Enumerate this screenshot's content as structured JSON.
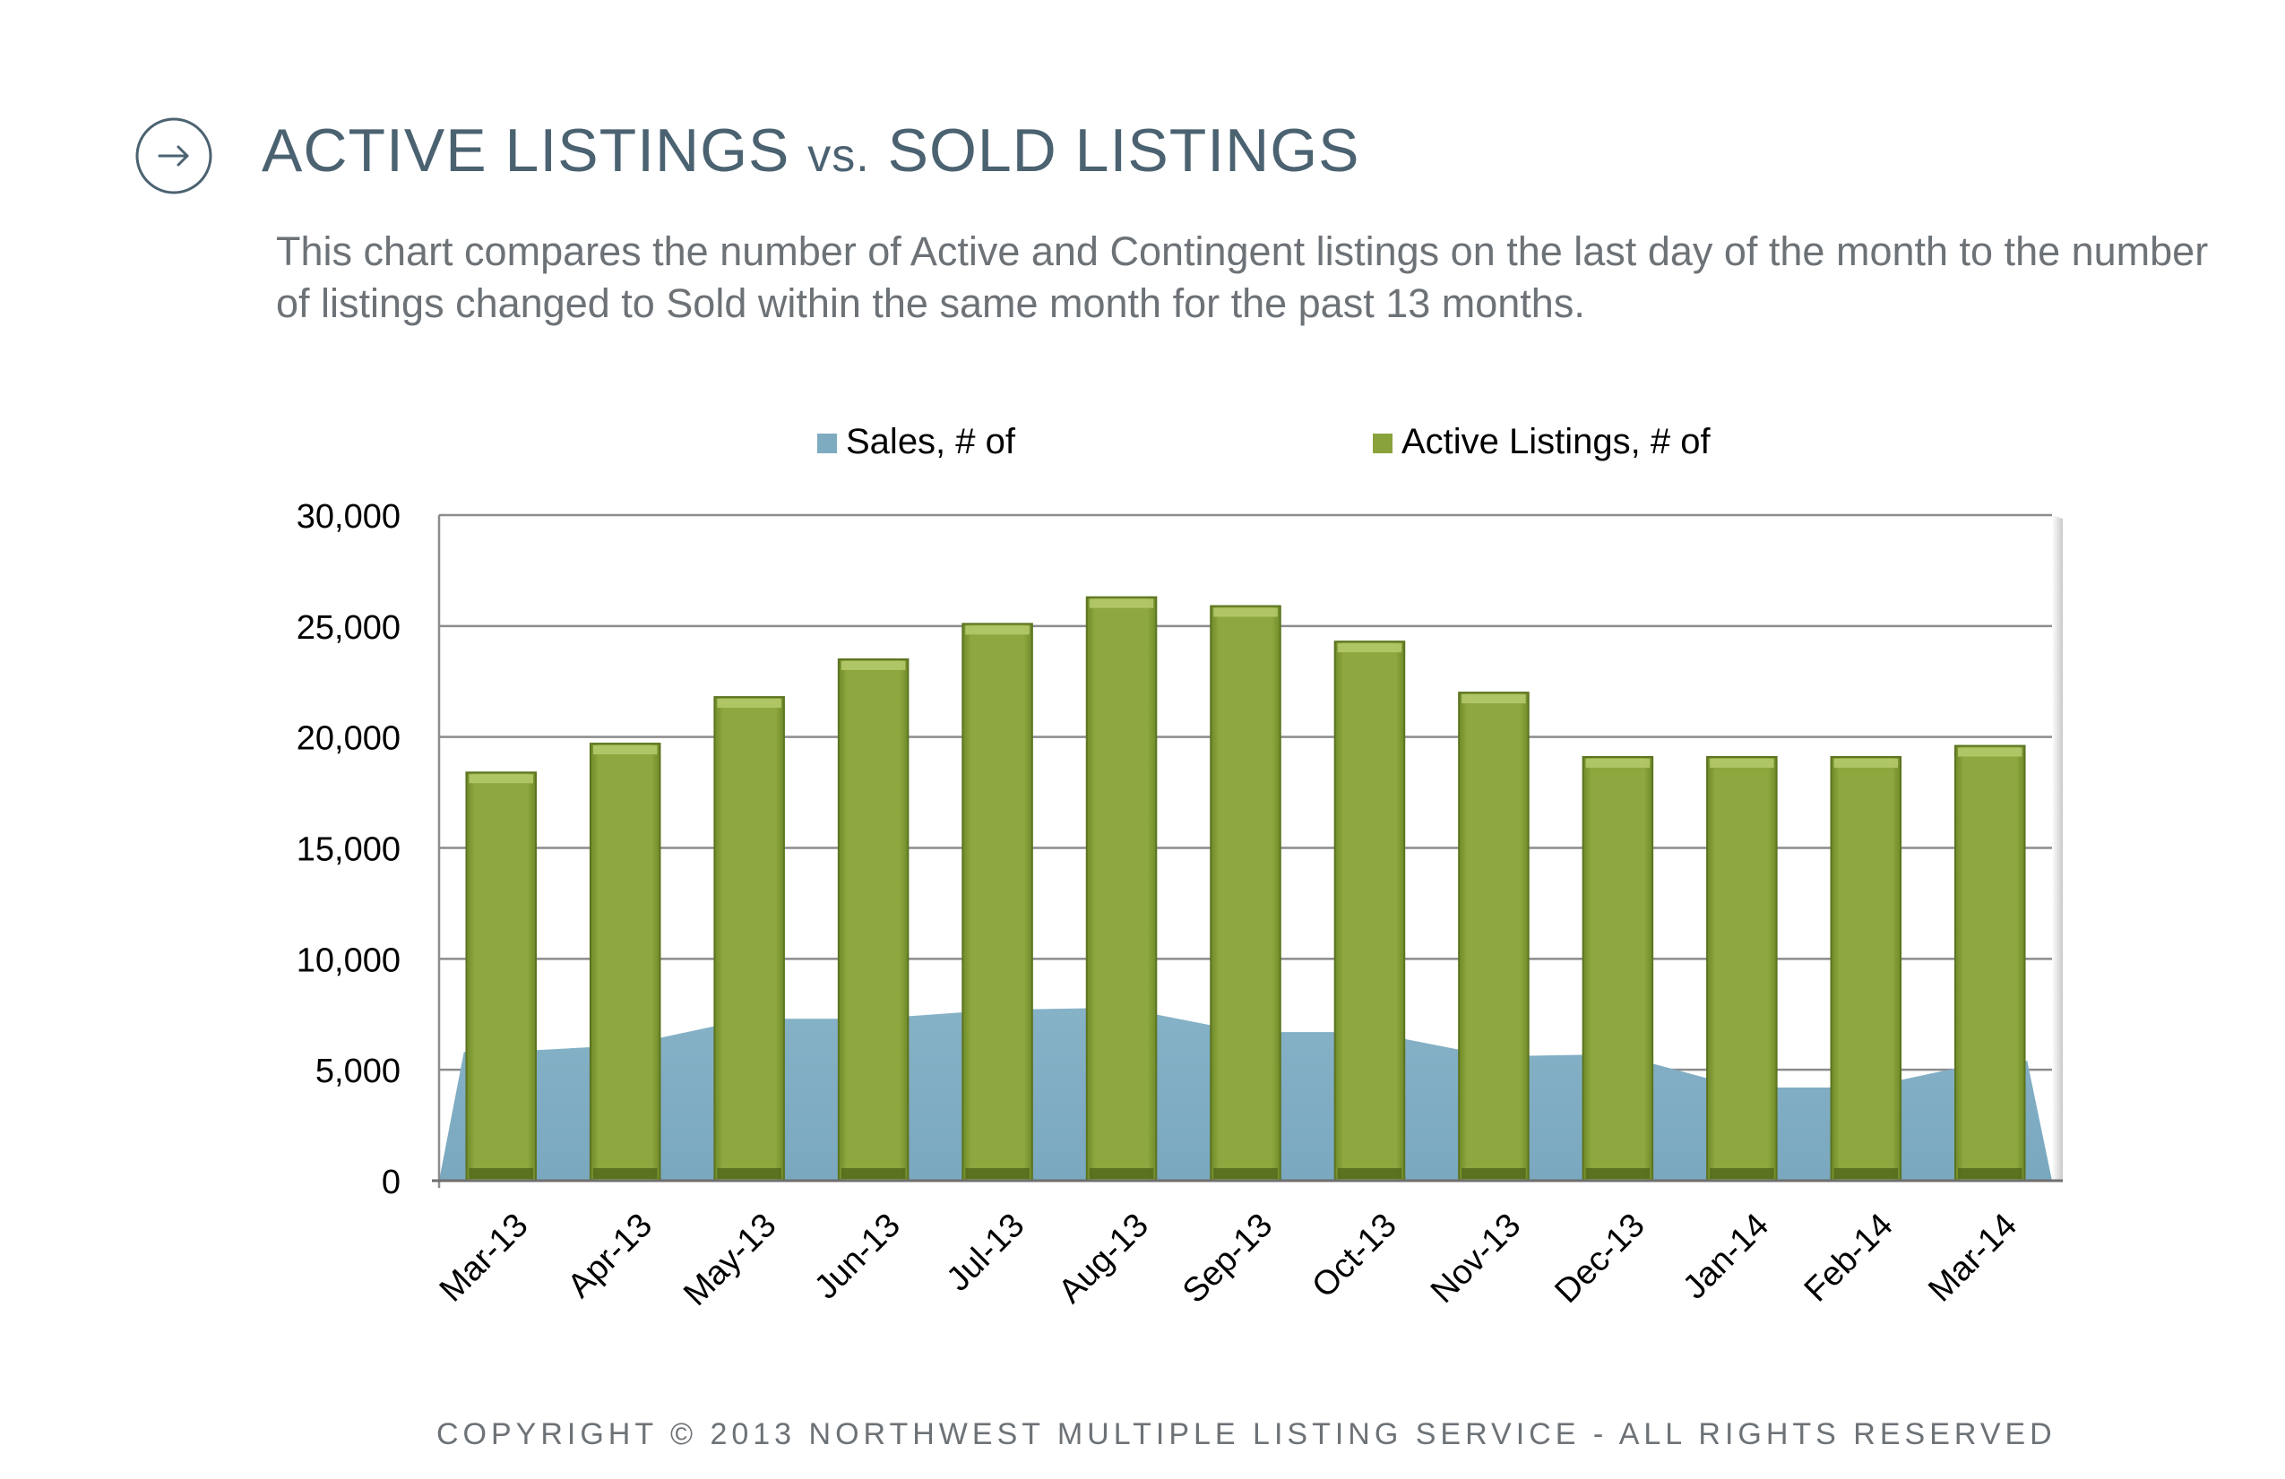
{
  "header": {
    "title_main": "ACTIVE LISTINGS ",
    "title_vs": "vs.",
    "title_end": " SOLD LISTINGS",
    "description": "This chart compares the number of Active and Contingent listings on the last day of the month to the number of listings changed to Sold within the same month for the past 13 months.",
    "icon": "arrow-right-circle-icon"
  },
  "footer": {
    "copyright": "COPYRIGHT © 2013 NORTHWEST MULTIPLE LISTING SERVICE - ALL RIGHTS RESERVED"
  },
  "chart_data": {
    "type": "bar",
    "categories": [
      "Mar-13",
      "Apr-13",
      "May-13",
      "Jun-13",
      "Jul-13",
      "Aug-13",
      "Sep-13",
      "Oct-13",
      "Nov-13",
      "Dec-13",
      "Jan-14",
      "Feb-14",
      "Mar-14"
    ],
    "series": [
      {
        "name": "Sales, # of",
        "type": "area",
        "color": "#7fabc1",
        "values": [
          5800,
          6100,
          7300,
          7300,
          7700,
          7800,
          6700,
          6700,
          5600,
          5700,
          4200,
          4200,
          5400
        ]
      },
      {
        "name": "Active Listings, # of",
        "type": "bar",
        "color": "#8aa23b",
        "values": [
          18400,
          19700,
          21800,
          23500,
          25100,
          26300,
          25900,
          24300,
          22000,
          19100,
          19100,
          19100,
          19600
        ]
      }
    ],
    "ylim": [
      0,
      30000
    ],
    "yticks": [
      "0",
      "5,000",
      "10,000",
      "15,000",
      "20,000",
      "25,000",
      "30,000"
    ],
    "ytick_values": [
      0,
      5000,
      10000,
      15000,
      20000,
      25000,
      30000
    ],
    "grid": true,
    "legend_position": "top"
  }
}
